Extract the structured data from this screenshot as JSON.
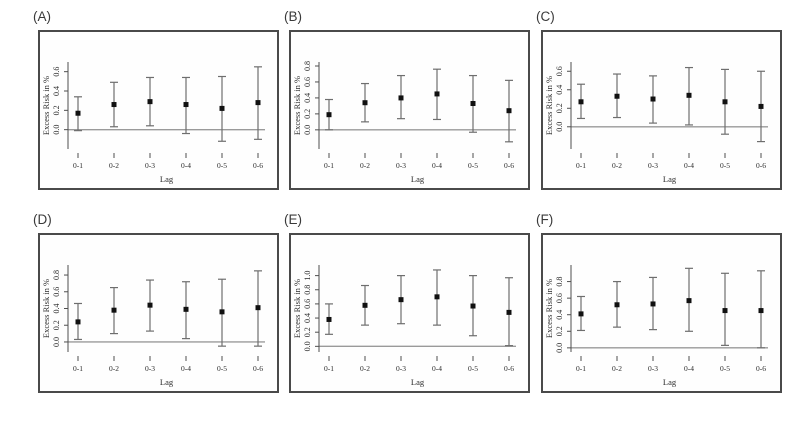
{
  "figure": {
    "background": "#ffffff",
    "xlabel": "Lag",
    "ylabel": "Excess Risk in %",
    "marker": "filled-square",
    "error_bar_caps": true,
    "colors": {
      "point": "#111111",
      "error_bar": "#6e6e6e",
      "zero_line": "#9a9a9a",
      "axis": "#4f4f4f",
      "text": "#2a2a2a",
      "panel_border": "#4a4a4a"
    }
  },
  "chart_data": [
    {
      "type": "scatter",
      "panel": "(A)",
      "xlabel": "Lag",
      "ylabel": "Excess Risk in %",
      "categories": [
        "0-1",
        "0-2",
        "0-3",
        "0-4",
        "0-5",
        "0-6"
      ],
      "series": [
        {
          "name": "point estimate",
          "values": [
            0.17,
            0.26,
            0.29,
            0.26,
            0.22,
            0.28
          ]
        },
        {
          "name": "ci lower",
          "values": [
            -0.01,
            0.03,
            0.04,
            -0.04,
            -0.12,
            -0.1
          ]
        },
        {
          "name": "ci upper",
          "values": [
            0.34,
            0.49,
            0.54,
            0.54,
            0.55,
            0.65
          ]
        }
      ],
      "y_ticks": [
        0.0,
        0.2,
        0.4,
        0.6
      ],
      "ylim": [
        -0.2,
        0.7
      ],
      "zero_line": 0.0,
      "grid": false,
      "legend": false
    },
    {
      "type": "scatter",
      "panel": "(B)",
      "xlabel": "Lag",
      "ylabel": "Excess Risk in %",
      "categories": [
        "0-1",
        "0-2",
        "0-3",
        "0-4",
        "0-5",
        "0-6"
      ],
      "series": [
        {
          "name": "point estimate",
          "values": [
            0.19,
            0.34,
            0.4,
            0.45,
            0.33,
            0.24
          ]
        },
        {
          "name": "ci lower",
          "values": [
            0.0,
            0.1,
            0.14,
            0.13,
            -0.03,
            -0.15
          ]
        },
        {
          "name": "ci upper",
          "values": [
            0.38,
            0.58,
            0.68,
            0.76,
            0.68,
            0.62
          ]
        }
      ],
      "y_ticks": [
        0.0,
        0.2,
        0.4,
        0.6,
        0.8
      ],
      "ylim": [
        -0.24,
        0.85
      ],
      "zero_line": 0.0,
      "grid": false,
      "legend": false
    },
    {
      "type": "scatter",
      "panel": "(C)",
      "xlabel": "Lag",
      "ylabel": "Excess Risk in %",
      "categories": [
        "0-1",
        "0-2",
        "0-3",
        "0-4",
        "0-5",
        "0-6"
      ],
      "series": [
        {
          "name": "point estimate",
          "values": [
            0.27,
            0.33,
            0.3,
            0.34,
            0.27,
            0.22
          ]
        },
        {
          "name": "ci lower",
          "values": [
            0.09,
            0.1,
            0.04,
            0.02,
            -0.08,
            -0.16
          ]
        },
        {
          "name": "ci upper",
          "values": [
            0.46,
            0.57,
            0.55,
            0.64,
            0.62,
            0.6
          ]
        }
      ],
      "y_ticks": [
        0.0,
        0.2,
        0.4,
        0.6
      ],
      "ylim": [
        -0.24,
        0.7
      ],
      "zero_line": 0.0,
      "grid": false,
      "legend": false
    },
    {
      "type": "scatter",
      "panel": "(D)",
      "xlabel": "Lag",
      "ylabel": "Excess Risk in %",
      "categories": [
        "0-1",
        "0-2",
        "0-3",
        "0-4",
        "0-5",
        "0-6"
      ],
      "series": [
        {
          "name": "point estimate",
          "values": [
            0.24,
            0.38,
            0.44,
            0.39,
            0.36,
            0.41
          ]
        },
        {
          "name": "ci lower",
          "values": [
            0.03,
            0.1,
            0.13,
            0.04,
            -0.05,
            -0.05
          ]
        },
        {
          "name": "ci upper",
          "values": [
            0.46,
            0.65,
            0.74,
            0.72,
            0.75,
            0.85
          ]
        }
      ],
      "y_ticks": [
        0.0,
        0.2,
        0.4,
        0.6,
        0.8
      ],
      "ylim": [
        -0.12,
        0.92
      ],
      "zero_line": 0.0,
      "grid": false,
      "legend": false
    },
    {
      "type": "scatter",
      "panel": "(E)",
      "xlabel": "Lag",
      "ylabel": "Excess Risk in %",
      "categories": [
        "0-1",
        "0-2",
        "0-3",
        "0-4",
        "0-5",
        "0-6"
      ],
      "series": [
        {
          "name": "point estimate",
          "values": [
            0.38,
            0.58,
            0.66,
            0.7,
            0.57,
            0.48
          ]
        },
        {
          "name": "ci lower",
          "values": [
            0.17,
            0.3,
            0.32,
            0.3,
            0.15,
            0.01
          ]
        },
        {
          "name": "ci upper",
          "values": [
            0.6,
            0.86,
            1.0,
            1.08,
            1.0,
            0.97
          ]
        }
      ],
      "y_ticks": [
        0.0,
        0.2,
        0.4,
        0.6,
        0.8,
        1.0
      ],
      "ylim": [
        -0.08,
        1.15
      ],
      "zero_line": 0.0,
      "grid": false,
      "legend": false
    },
    {
      "type": "scatter",
      "panel": "(F)",
      "xlabel": "Lag",
      "ylabel": "Excess Risk in %",
      "categories": [
        "0-1",
        "0-2",
        "0-3",
        "0-4",
        "0-5",
        "0-6"
      ],
      "series": [
        {
          "name": "point estimate",
          "values": [
            0.41,
            0.52,
            0.53,
            0.57,
            0.45,
            0.45
          ]
        },
        {
          "name": "ci lower",
          "values": [
            0.21,
            0.25,
            0.22,
            0.2,
            0.03,
            0.0
          ]
        },
        {
          "name": "ci upper",
          "values": [
            0.62,
            0.8,
            0.85,
            0.96,
            0.9,
            0.93
          ]
        }
      ],
      "y_ticks": [
        0.0,
        0.2,
        0.4,
        0.6,
        0.8
      ],
      "ylim": [
        -0.05,
        1.0
      ],
      "zero_line": 0.0,
      "grid": false,
      "legend": false
    }
  ]
}
